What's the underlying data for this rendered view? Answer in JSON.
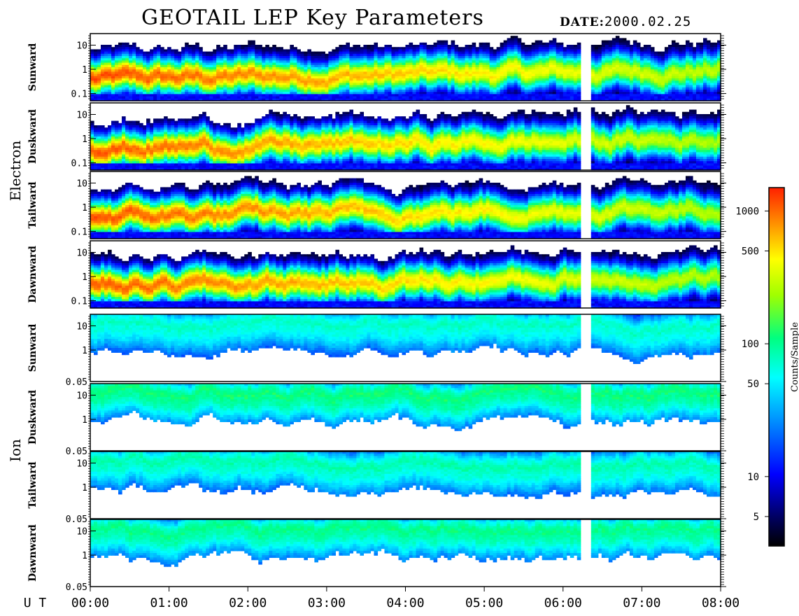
{
  "title": "GEOTAIL LEP Key Parameters",
  "date_label": "DATE:",
  "date_value": "2000.02.25",
  "x_axis_label": "U T",
  "colorbar_label": "Counts/Sample",
  "colors": {
    "low": "#000000",
    "mid": "#00ff80",
    "high": "#ff2000",
    "frame": "#000000",
    "background": "#ffffff"
  },
  "chart_data": {
    "type": "heatmap",
    "x_ticks": [
      "00:00",
      "01:00",
      "02:00",
      "03:00",
      "04:00",
      "05:00",
      "06:00",
      "07:00",
      "08:00"
    ],
    "xlim": [
      "00:00",
      "08:00"
    ],
    "data_gaps": [
      [
        "06:13",
        "06:20"
      ]
    ],
    "colorbar": {
      "label": "Counts/Sample",
      "scale": "log",
      "range": [
        3,
        1500
      ],
      "ticks": [
        5,
        10,
        50,
        100,
        500,
        1000
      ]
    },
    "groups": [
      {
        "name": "Electron",
        "y_scale": "log",
        "y_ticks": [
          "10",
          "1",
          "0.1"
        ],
        "ylim": [
          0.05,
          30
        ],
        "panels": [
          {
            "label": "Sunward",
            "peak_energy": 0.4,
            "peak_counts": 1200
          },
          {
            "label": "Duskward",
            "peak_energy": 0.4,
            "peak_counts": 1100
          },
          {
            "label": "Tailward",
            "peak_energy": 0.4,
            "peak_counts": 1150
          },
          {
            "label": "Dawnward",
            "peak_energy": 0.4,
            "peak_counts": 1100
          }
        ]
      },
      {
        "name": "Ion",
        "y_scale": "log",
        "y_ticks": [
          "10",
          "1",
          "0.05"
        ],
        "ylim": [
          0.05,
          30
        ],
        "panels": [
          {
            "label": "Sunward",
            "peak_energy": 10,
            "peak_counts": 80
          },
          {
            "label": "Duskward",
            "peak_energy": 10,
            "peak_counts": 120
          },
          {
            "label": "Tailward",
            "peak_energy": 10,
            "peak_counts": 90
          },
          {
            "label": "Dawnward",
            "peak_energy": 10,
            "peak_counts": 110
          }
        ]
      }
    ]
  }
}
